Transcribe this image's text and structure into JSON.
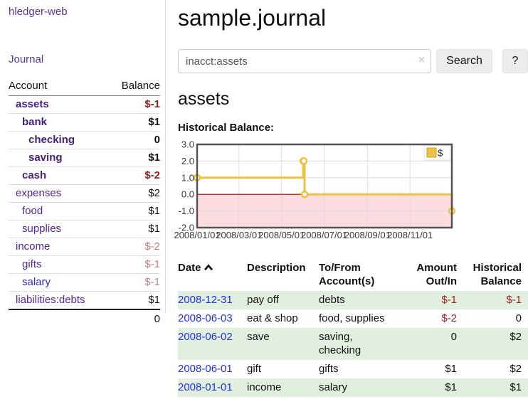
{
  "app": {
    "brand": "hledger-web",
    "nav_journal": "Journal"
  },
  "sidebar": {
    "columns": {
      "account": "Account",
      "balance": "Balance"
    },
    "rows": [
      {
        "account": "assets",
        "balance": "$-1"
      },
      {
        "account": "bank",
        "balance": "$1"
      },
      {
        "account": "checking",
        "balance": "0"
      },
      {
        "account": "saving",
        "balance": "$1"
      },
      {
        "account": "cash",
        "balance": "$-2"
      },
      {
        "account": "expenses",
        "balance": "$2"
      },
      {
        "account": "food",
        "balance": "$1"
      },
      {
        "account": "supplies",
        "balance": "$1"
      },
      {
        "account": "income",
        "balance": "$-2"
      },
      {
        "account": "gifts",
        "balance": "$-1"
      },
      {
        "account": "salary",
        "balance": "$-1"
      },
      {
        "account": "liabilities:debts",
        "balance": "$1"
      }
    ],
    "total_balance": "0"
  },
  "main": {
    "title": "sample.journal",
    "search": {
      "value": "inacct:assets",
      "clear_icon": "×",
      "search_button": "Search",
      "help_button": "?"
    },
    "account_heading": "assets",
    "chart_label": "Historical Balance:"
  },
  "chart_data": {
    "type": "line",
    "interpolation": "step-after",
    "title": "Historical Balance",
    "series": [
      {
        "name": "$",
        "color": "#edc240",
        "dates": [
          "2008-01-01",
          "2008-06-01",
          "2008-06-02",
          "2008-06-03",
          "2008-12-31"
        ],
        "days": [
          0,
          152,
          153,
          154,
          365
        ],
        "values": [
          1,
          2,
          2,
          0,
          -1
        ]
      }
    ],
    "ylim": [
      -2,
      3
    ],
    "ytick_values": [
      3,
      2,
      1,
      0,
      -1,
      -2
    ],
    "ytick_labels": [
      "3.0",
      "2.0",
      "1.0",
      "0.0",
      "-1.0",
      "-2.0"
    ],
    "xlim_days": [
      0,
      365
    ],
    "xtick_days": [
      0,
      60,
      121,
      182,
      244,
      305
    ],
    "xtick_labels": [
      "2008/01/01",
      "2008/03/01",
      "2008/05/01",
      "2008/07/01",
      "2008/09/01",
      "2008/11/01"
    ],
    "legend": {
      "label": "$",
      "position": "top-right"
    },
    "grid": true,
    "colors": {
      "negative_region_fill": "#fcdcde",
      "zero_line": "#a00000",
      "grid_line": "#dcdcdc",
      "border": "#545454",
      "tick_text": "#3a3a3a"
    }
  },
  "register": {
    "headers": {
      "date": "Date",
      "description": "Description",
      "accounts": "To/From\nAccount(s)",
      "amount": "Amount\nOut/In",
      "balance": "Historical\nBalance"
    },
    "sort": "date ascending",
    "rows": [
      {
        "date": "2008-12-31",
        "description": "pay off",
        "accounts": "debts",
        "amount": "$-1",
        "balance": "$-1"
      },
      {
        "date": "2008-06-03",
        "description": "eat & shop",
        "accounts": "food, supplies",
        "amount": "$-2",
        "balance": "0"
      },
      {
        "date": "2008-06-02",
        "description": "save",
        "accounts": "saving,\nchecking",
        "amount": "0",
        "balance": "$2"
      },
      {
        "date": "2008-06-01",
        "description": "gift",
        "accounts": "gifts",
        "amount": "$1",
        "balance": "$2"
      },
      {
        "date": "2008-01-01",
        "description": "income",
        "accounts": "salary",
        "amount": "$1",
        "balance": "$1"
      }
    ]
  },
  "colors": {
    "link_purple": "#53279b",
    "link_purple_bold": "#46207f",
    "link_blue": "#2a2ad0",
    "date_link_blue": "#2430d8",
    "negative_strong": "#971b1b",
    "negative_soft": "#c47e7e",
    "register_stripe_green": "#e1efdf",
    "series_yellow": "#edc240"
  }
}
